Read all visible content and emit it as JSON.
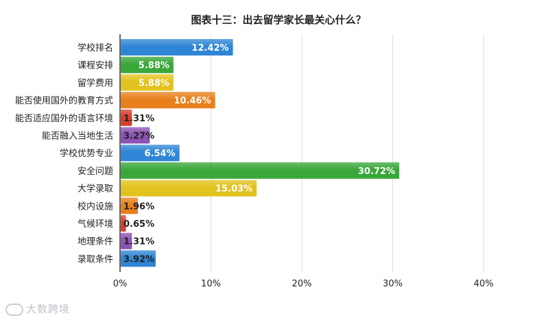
{
  "title": "图表十三：出去留学家长最关心什么？",
  "watermark": "大数跨境",
  "chart_data": {
    "type": "bar",
    "orientation": "horizontal",
    "title": "图表十三：出去留学家长最关心什么？",
    "xlabel": "",
    "ylabel": "",
    "xlim": [
      0,
      40
    ],
    "x_ticks": [
      "0%",
      "10%",
      "20%",
      "30%",
      "40%"
    ],
    "grid": true,
    "categories": [
      "学校排名",
      "课程安排",
      "留学费用",
      "能否使用国外的教育方式",
      "能否适应国外的语言环境",
      "能否融入当地生活",
      "学校优势专业",
      "安全问题",
      "大学录取",
      "校内设施",
      "气候环境",
      "地理条件",
      "录取条件"
    ],
    "values": [
      12.42,
      5.88,
      5.88,
      10.46,
      1.31,
      3.27,
      6.54,
      30.72,
      15.03,
      1.96,
      0.65,
      1.31,
      3.92
    ],
    "labels": [
      "12.42%",
      "5.88%",
      "5.88%",
      "10.46%",
      "1.31%",
      "3.27%",
      "6.54%",
      "30.72%",
      "15.03%",
      "1.96%",
      "0.65%",
      "1.31%",
      "3.92%"
    ],
    "colors": [
      "#2f86d6",
      "#3aa73a",
      "#e2c21f",
      "#e8801e",
      "#d8402a",
      "#8e52b5",
      "#2f86d6",
      "#3aa73a",
      "#e2c21f",
      "#e8801e",
      "#d8402a",
      "#8e52b5",
      "#2f86d6"
    ]
  }
}
